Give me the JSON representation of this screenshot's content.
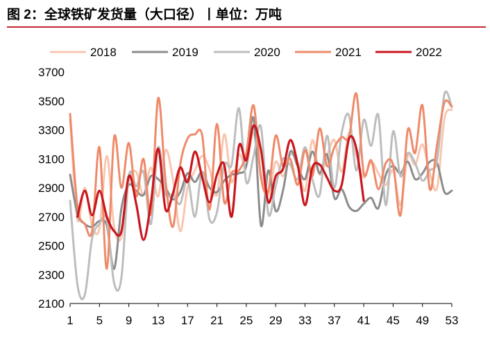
{
  "title": "图 2：全球铁矿发货量（大口径）丨单位：万吨",
  "chart_data": {
    "type": "line",
    "title": "图 2：全球铁矿发货量（大口径）丨单位：万吨",
    "xlabel": "",
    "ylabel": "",
    "x_ticks": [
      1,
      5,
      9,
      13,
      17,
      21,
      25,
      29,
      33,
      37,
      41,
      45,
      49,
      53
    ],
    "y_ticks": [
      2100,
      2300,
      2500,
      2700,
      2900,
      3100,
      3300,
      3500,
      3700
    ],
    "xlim": [
      1,
      53
    ],
    "ylim": [
      2100,
      3700
    ],
    "grid": false,
    "legend_position": "top",
    "series": [
      {
        "name": "2018",
        "color": "#f9c6b0",
        "values": [
          3370,
          2680,
          2900,
          2640,
          2620,
          3120,
          2630,
          2560,
          2950,
          3010,
          2850,
          3040,
          2840,
          3160,
          2960,
          2600,
          2900,
          3020,
          3120,
          3030,
          2850,
          3270,
          2940,
          3130,
          3050,
          3280,
          3000,
          2850,
          3080,
          2980,
          3130,
          3070,
          2880,
          3230,
          2990,
          3120,
          3230,
          3010,
          3280,
          3120,
          2970,
          3080,
          3000,
          2920,
          3020,
          2780,
          3120,
          3060,
          3200,
          3000,
          2900,
          3380,
          3440
        ]
      },
      {
        "name": "2019",
        "color": "#8c8c8c",
        "values": [
          2990,
          2720,
          2650,
          2630,
          2670,
          2640,
          2340,
          2760,
          2920,
          2880,
          2850,
          2980,
          2960,
          2900,
          2820,
          2870,
          3000,
          2940,
          3010,
          2900,
          2870,
          2950,
          2990,
          3000,
          3050,
          3380,
          2640,
          3020,
          2740,
          2880,
          3150,
          3050,
          2960,
          3150,
          3000,
          3130,
          2830,
          2890,
          2770,
          2740,
          2790,
          2830,
          2760,
          2990,
          3050,
          3000,
          3080,
          2960,
          3000,
          3080,
          3070,
          2870,
          2880
        ]
      },
      {
        "name": "2020",
        "color": "#bdbdbd",
        "values": [
          2810,
          2230,
          2160,
          2550,
          2650,
          2680,
          2240,
          2280,
          2980,
          2910,
          3010,
          2650,
          3180,
          2860,
          2850,
          2790,
          2960,
          2700,
          3010,
          2680,
          2730,
          3060,
          3060,
          3450,
          2940,
          3120,
          3320,
          2720,
          2910,
          3100,
          3060,
          2960,
          3180,
          2960,
          2850,
          3260,
          2900,
          3280,
          3400,
          3020,
          3370,
          3190,
          3400,
          2780,
          3290,
          2980,
          3140,
          3070,
          2950,
          3020,
          3090,
          3550,
          3460
        ]
      },
      {
        "name": "2021",
        "color": "#ee8a6a",
        "values": [
          3410,
          2770,
          2650,
          2600,
          3180,
          2340,
          3250,
          2900,
          3210,
          2840,
          3100,
          2720,
          3520,
          2950,
          2630,
          3060,
          3240,
          3270,
          3260,
          2750,
          3340,
          2800,
          3000,
          3020,
          3140,
          3470,
          2970,
          2880,
          3260,
          3050,
          3100,
          2920,
          3160,
          2980,
          3310,
          3050,
          3180,
          3250,
          3250,
          3550,
          3000,
          3090,
          2890,
          3070,
          3060,
          2710,
          3300,
          3140,
          3470,
          2890,
          3200,
          3490,
          3460
        ]
      },
      {
        "name": "2022",
        "color": "#c8161d",
        "values": [
          null,
          2700,
          2880,
          2710,
          2880,
          2700,
          2600,
          2600,
          2980,
          2790,
          2540,
          2790,
          3170,
          2750,
          2860,
          3040,
          2940,
          3150,
          2970,
          2800,
          2990,
          3060,
          2700,
          3190,
          3090,
          3330,
          3160,
          2800,
          2980,
          3030,
          3230,
          3060,
          2780,
          3040,
          3060,
          2970,
          2880,
          2920,
          3240,
          3170,
          2810,
          null,
          null,
          null,
          null,
          null,
          null,
          null,
          null,
          null,
          null,
          null,
          null
        ]
      }
    ]
  }
}
